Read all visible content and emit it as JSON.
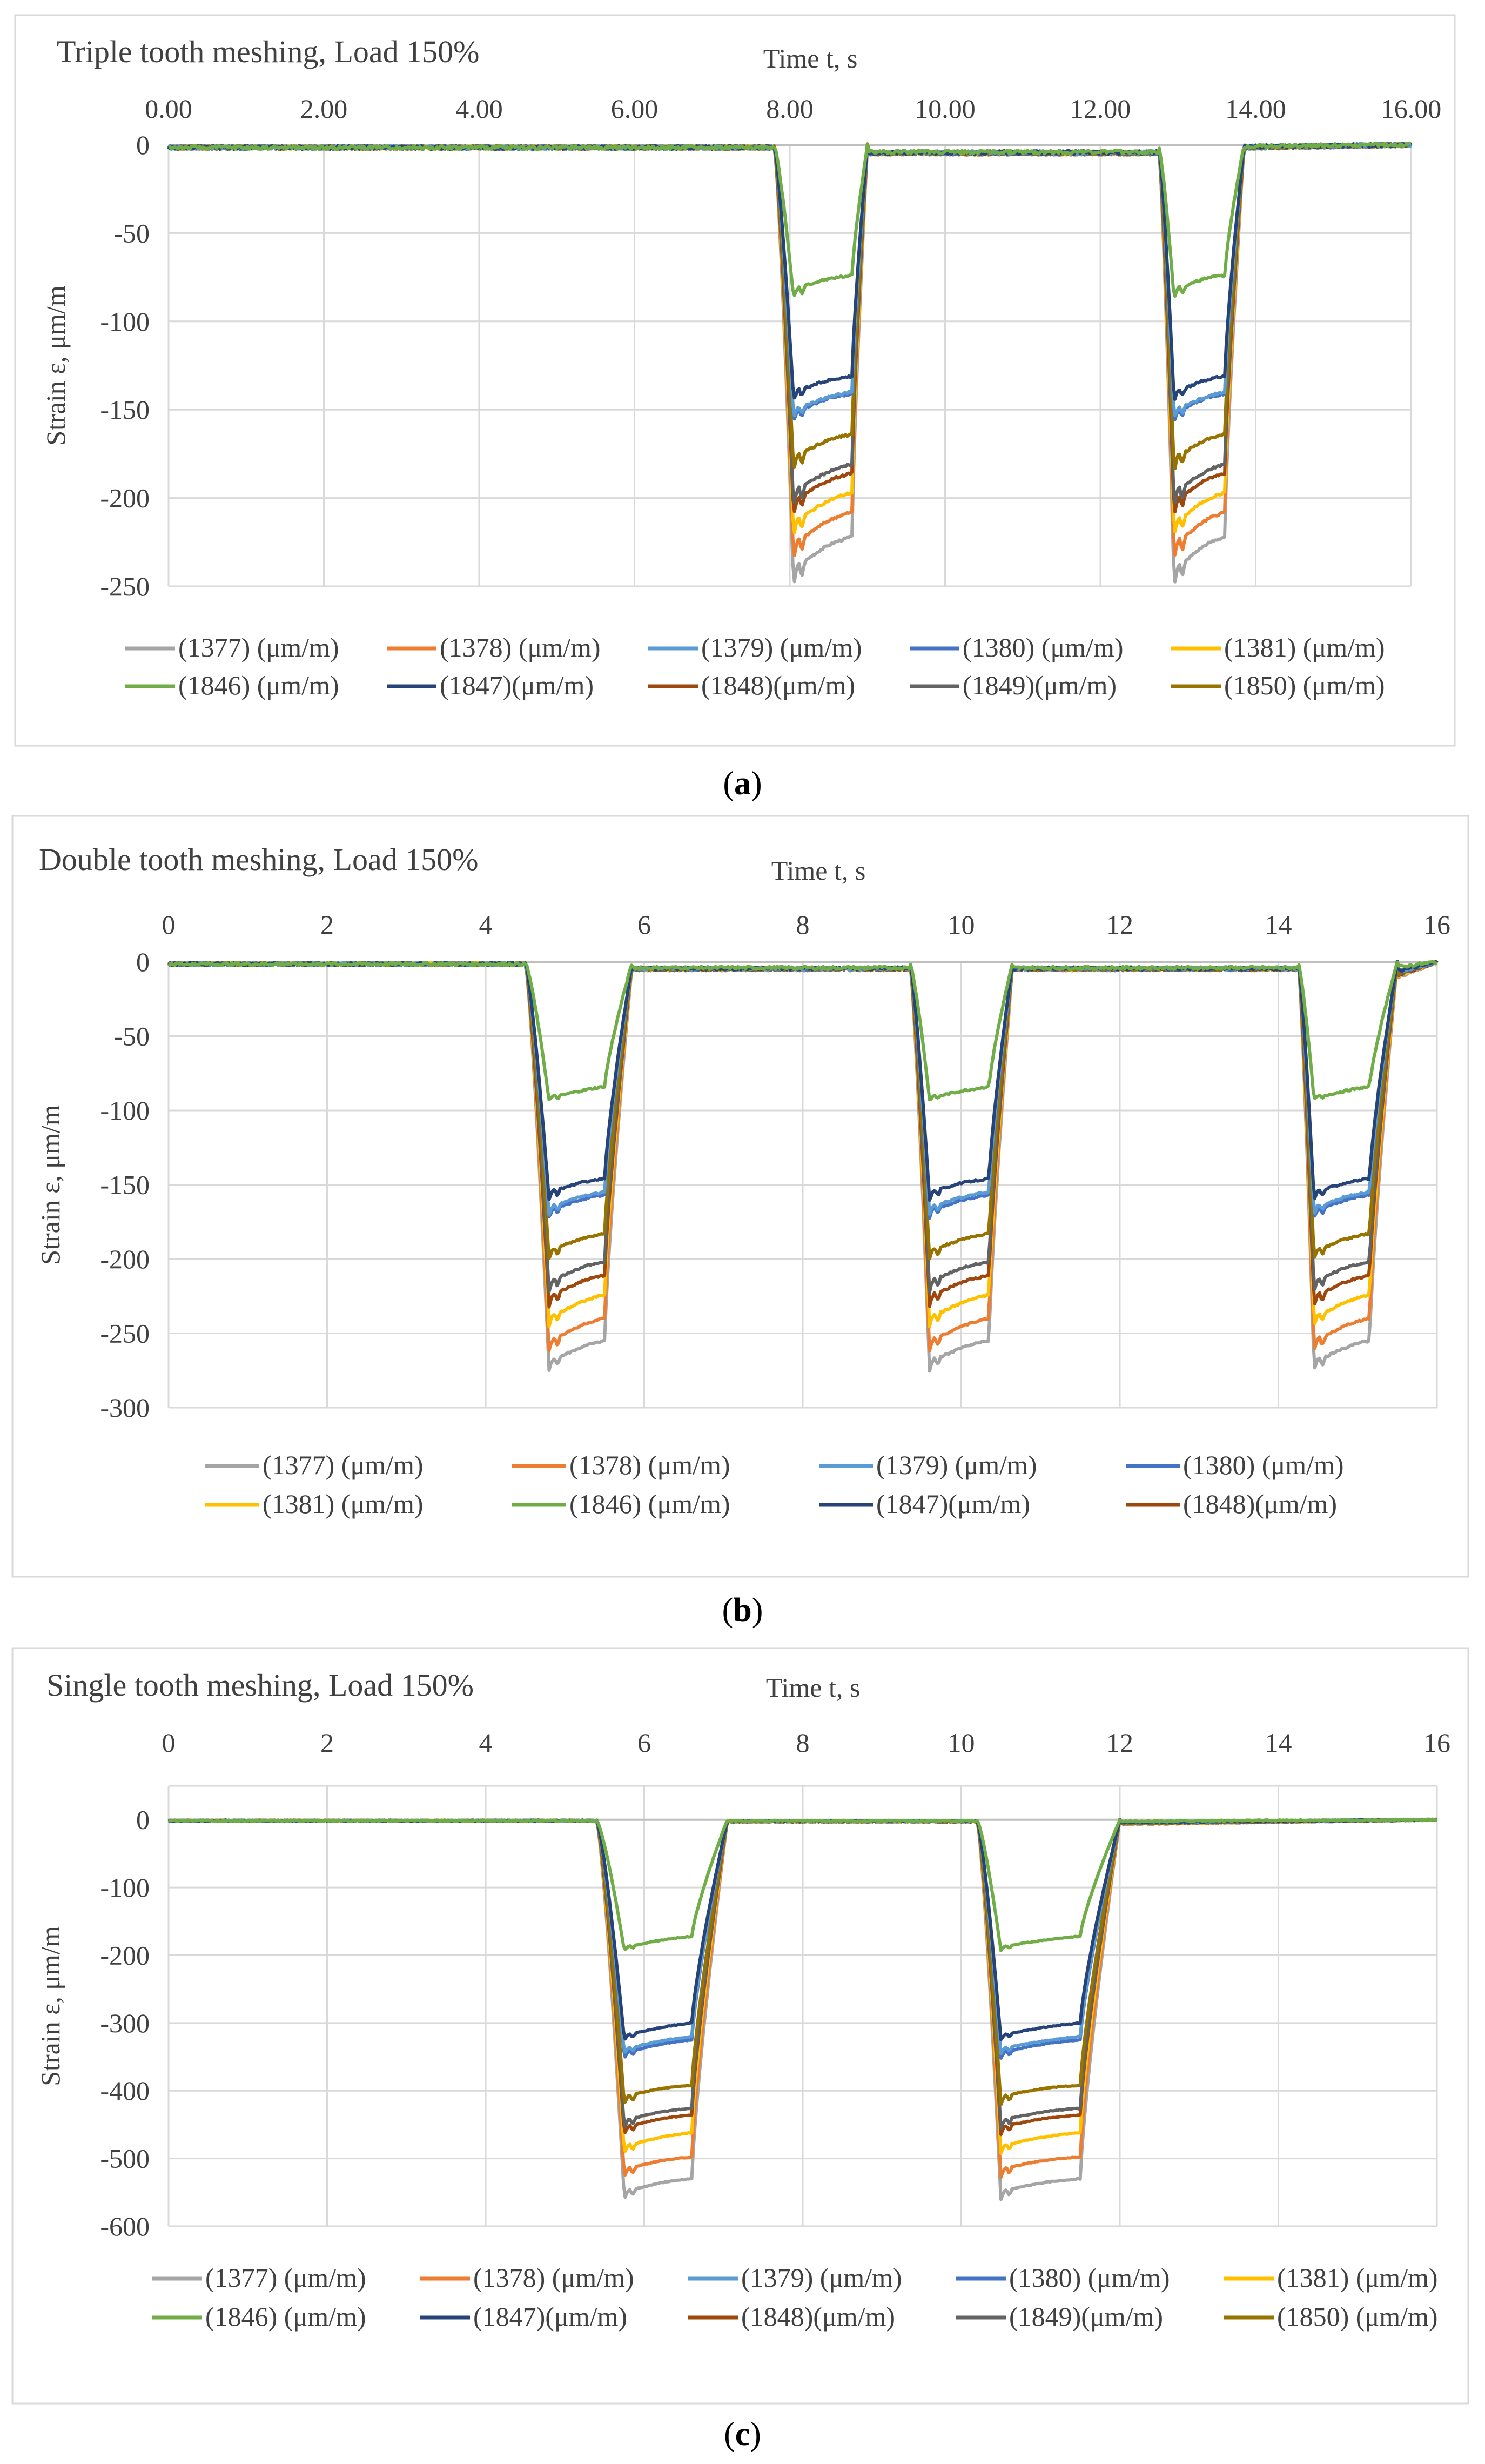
{
  "chart_data": [
    {
      "type": "line",
      "title": "Triple tooth meshing, Load 150%",
      "xlabel": "Time t, s",
      "ylabel": "Strain ε, μm/m",
      "xlim": [
        0,
        16
      ],
      "ylim": [
        -250,
        0
      ],
      "xticks": [
        0,
        2,
        4,
        6,
        8,
        10,
        12,
        14,
        16
      ],
      "xtick_labels": [
        "0.00",
        "2.00",
        "4.00",
        "6.00",
        "8.00",
        "10.00",
        "12.00",
        "14.00",
        "16.00"
      ],
      "yticks": [
        0,
        -50,
        -100,
        -150,
        -200,
        -250
      ],
      "ytick_labels": [
        "0",
        "-50",
        "-100",
        "-150",
        "-200",
        "-250"
      ],
      "x_axis_position": "top",
      "grid": true,
      "legend_position": "bottom",
      "legend_columns": 5,
      "events": [
        {
          "start": 7.8,
          "end": 9.0,
          "fall_end": 8.05,
          "rise_start": 8.8,
          "after": -12
        },
        {
          "start": 12.75,
          "end": 13.85,
          "fall_end": 12.95,
          "rise_start": 13.6,
          "after": -2
        }
      ],
      "baseline_between": -5,
      "series": [
        {
          "name": "(1377) (μm/m)",
          "color": "#a5a5a5",
          "peak": -250,
          "plateau": -236,
          "end": -222
        },
        {
          "name": "(1378) (μm/m)",
          "color": "#ed7d31",
          "peak": -235,
          "plateau": -222,
          "end": -208
        },
        {
          "name": "(1379) (μm/m)",
          "color": "#5b9bd5",
          "peak": -155,
          "plateau": -148,
          "end": -140
        },
        {
          "name": "(1380) (μm/m)",
          "color": "#4472c4",
          "peak": -157,
          "plateau": -149,
          "end": -141
        },
        {
          "name": "(1381) (μm/m)",
          "color": "#ffc000",
          "peak": -222,
          "plateau": -210,
          "end": -197
        },
        {
          "name": "(1846) (μm/m)",
          "color": "#70ad47",
          "peak": -87,
          "plateau": -80,
          "end": -74
        },
        {
          "name": "(1847)(μm/m)",
          "color": "#264478",
          "peak": -145,
          "plateau": -138,
          "end": -131
        },
        {
          "name": "(1848)(μm/m)",
          "color": "#9e480e",
          "peak": -210,
          "plateau": -198,
          "end": -186
        },
        {
          "name": "(1849)(μm/m)",
          "color": "#636363",
          "peak": -205,
          "plateau": -193,
          "end": -181
        },
        {
          "name": "(1850) (μm/m)",
          "color": "#997300",
          "peak": -185,
          "plateau": -174,
          "end": -164
        }
      ]
    },
    {
      "type": "line",
      "title": "Double tooth meshing, Load 150%",
      "xlabel": "Time t, s",
      "ylabel": "Strain ε, μm/m",
      "xlim": [
        0,
        16
      ],
      "ylim": [
        -300,
        0
      ],
      "xticks": [
        0,
        2,
        4,
        6,
        8,
        10,
        12,
        14,
        16
      ],
      "xtick_labels": [
        "0",
        "2",
        "4",
        "6",
        "8",
        "10",
        "12",
        "14",
        "16"
      ],
      "yticks": [
        0,
        -50,
        -100,
        -150,
        -200,
        -250,
        -300
      ],
      "ytick_labels": [
        "0",
        "-50",
        "-100",
        "-150",
        "-200",
        "-250",
        "-300"
      ],
      "x_axis_position": "top",
      "grid": true,
      "legend_position": "bottom",
      "legend_columns": 4,
      "events": [
        {
          "start": 4.5,
          "end": 5.85,
          "fall_end": 4.8,
          "rise_start": 5.5,
          "after": -12
        },
        {
          "start": 9.35,
          "end": 10.65,
          "fall_end": 9.6,
          "rise_start": 10.35,
          "after": -10
        },
        {
          "start": 14.25,
          "end": 15.5,
          "fall_end": 14.45,
          "rise_start": 15.15,
          "after": -10
        }
      ],
      "baseline_between": -5,
      "series": [
        {
          "name": "(1377) (μm/m)",
          "color": "#a5a5a5",
          "peak": -275,
          "plateau": -266,
          "end": -255
        },
        {
          "name": "(1378) (μm/m)",
          "color": "#ed7d31",
          "peak": -262,
          "plateau": -252,
          "end": -240
        },
        {
          "name": "(1379) (μm/m)",
          "color": "#5b9bd5",
          "peak": -170,
          "plateau": -163,
          "end": -155
        },
        {
          "name": "(1380) (μm/m)",
          "color": "#4472c4",
          "peak": -172,
          "plateau": -165,
          "end": -157
        },
        {
          "name": "(1381) (μm/m)",
          "color": "#ffc000",
          "peak": -245,
          "plateau": -236,
          "end": -224
        },
        {
          "name": "(1846) (μm/m)",
          "color": "#70ad47",
          "peak": -93,
          "plateau": -90,
          "end": -84
        },
        {
          "name": "(1847)(μm/m)",
          "color": "#264478",
          "peak": -160,
          "plateau": -153,
          "end": -146
        },
        {
          "name": "(1848)(μm/m)",
          "color": "#9e480e",
          "peak": -232,
          "plateau": -222,
          "end": -211
        }
      ],
      "hidden_series": [
        {
          "color": "#636363",
          "peak": -222,
          "plateau": -212,
          "end": -202
        },
        {
          "color": "#997300",
          "peak": -200,
          "plateau": -192,
          "end": -183
        }
      ]
    },
    {
      "type": "line",
      "title": "Single tooth meshing, Load 150%",
      "xlabel": "Time t, s",
      "ylabel": "Strain ε, μm/m",
      "xlim": [
        0,
        16
      ],
      "ylim": [
        -600,
        50
      ],
      "xticks": [
        0,
        2,
        4,
        6,
        8,
        10,
        12,
        14,
        16
      ],
      "xtick_labels": [
        "0",
        "2",
        "4",
        "6",
        "8",
        "10",
        "12",
        "14",
        "16"
      ],
      "yticks": [
        0,
        -100,
        -200,
        -300,
        -400,
        -500,
        -600
      ],
      "ytick_labels": [
        "0",
        "-100",
        "-200",
        "-300",
        "-400",
        "-500",
        "-600"
      ],
      "x_axis_position": "top",
      "grid": true,
      "legend_position": "bottom",
      "legend_columns": 5,
      "events": [
        {
          "start": 5.4,
          "end": 7.05,
          "fall_end": 5.75,
          "rise_start": 6.6,
          "after": -3
        },
        {
          "start": 10.2,
          "end": 12.0,
          "fall_end": 10.5,
          "rise_start": 11.5,
          "after": -3
        }
      ],
      "baseline_between": -2,
      "series": [
        {
          "name": "(1377) (μm/m)",
          "color": "#a5a5a5",
          "peak": -560,
          "plateau": -545,
          "end": -530
        },
        {
          "name": "(1378) (μm/m)",
          "color": "#ed7d31",
          "peak": -528,
          "plateau": -512,
          "end": -498
        },
        {
          "name": "(1379) (μm/m)",
          "color": "#5b9bd5",
          "peak": -345,
          "plateau": -335,
          "end": -320
        },
        {
          "name": "(1380) (μm/m)",
          "color": "#4472c4",
          "peak": -352,
          "plateau": -340,
          "end": -325
        },
        {
          "name": "(1381) (μm/m)",
          "color": "#ffc000",
          "peak": -492,
          "plateau": -478,
          "end": -462
        },
        {
          "name": "(1846) (μm/m)",
          "color": "#70ad47",
          "peak": -193,
          "plateau": -185,
          "end": -172
        },
        {
          "name": "(1847)(μm/m)",
          "color": "#264478",
          "peak": -325,
          "plateau": -315,
          "end": -300
        },
        {
          "name": "(1848)(μm/m)",
          "color": "#9e480e",
          "peak": -465,
          "plateau": -450,
          "end": -436
        },
        {
          "name": "(1849)(μm/m)",
          "color": "#636363",
          "peak": -455,
          "plateau": -440,
          "end": -426
        },
        {
          "name": "(1850) (μm/m)",
          "color": "#997300",
          "peak": -420,
          "plateau": -405,
          "end": -392
        }
      ]
    }
  ],
  "captions": [
    {
      "open": "(",
      "letter": "a",
      "close": ")"
    },
    {
      "open": "(",
      "letter": "b",
      "close": ")"
    },
    {
      "open": "(",
      "letter": "c",
      "close": ")"
    }
  ]
}
